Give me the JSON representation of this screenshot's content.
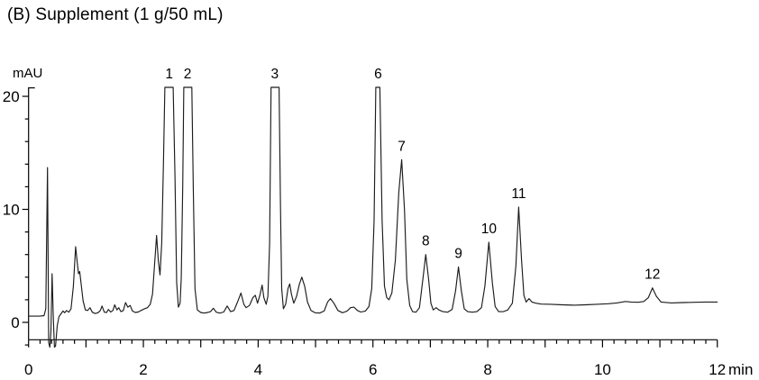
{
  "chart_data": {
    "type": "line",
    "title": "(B) Supplement (1 g/50 mL)",
    "xlabel": "min",
    "ylabel": "mAU",
    "xlim": [
      0,
      12
    ],
    "ylim": [
      -2.4,
      21.2
    ],
    "x_major_ticks": [
      0,
      2,
      4,
      6,
      8,
      10,
      12
    ],
    "x_tick_step_minor": 0.2,
    "y_major_ticks": [
      0,
      10,
      20
    ],
    "y_tick_step_minor": 2,
    "grid": "off",
    "legend": "none",
    "detector_clip_level_mAU": 20.8,
    "trace_color": "#1c1c1c",
    "axis_color": "#000000",
    "peaks": [
      {
        "label": "1",
        "t_min": 2.45,
        "height_mAU": 20.8,
        "clipped": true
      },
      {
        "label": "2",
        "t_min": 2.77,
        "height_mAU": 20.8,
        "clipped": true
      },
      {
        "label": "3",
        "t_min": 4.29,
        "height_mAU": 20.8,
        "clipped": true
      },
      {
        "label": "6",
        "t_min": 6.09,
        "height_mAU": 20.8,
        "clipped": true
      },
      {
        "label": "7",
        "t_min": 6.5,
        "height_mAU": 14.4,
        "clipped": false
      },
      {
        "label": "8",
        "t_min": 6.92,
        "height_mAU": 6.0,
        "clipped": false
      },
      {
        "label": "9",
        "t_min": 7.49,
        "height_mAU": 4.9,
        "clipped": false
      },
      {
        "label": "10",
        "t_min": 8.02,
        "height_mAU": 7.1,
        "clipped": false
      },
      {
        "label": "11",
        "t_min": 8.54,
        "height_mAU": 10.2,
        "clipped": false
      },
      {
        "label": "12",
        "t_min": 10.87,
        "height_mAU": 3.05,
        "clipped": false
      }
    ],
    "trace": [
      [
        0,
        0.55
      ],
      [
        0.2,
        0.55
      ],
      [
        0.27,
        0.6
      ],
      [
        0.3,
        1.2
      ],
      [
        0.33,
        13.7
      ],
      [
        0.35,
        -1.8
      ],
      [
        0.37,
        -2.2
      ],
      [
        0.39,
        -0.8
      ],
      [
        0.41,
        4.3
      ],
      [
        0.43,
        0.5
      ],
      [
        0.45,
        -2.2
      ],
      [
        0.47,
        -2.1
      ],
      [
        0.5,
        -0.3
      ],
      [
        0.53,
        0.5
      ],
      [
        0.57,
        0.8
      ],
      [
        0.6,
        1.0
      ],
      [
        0.63,
        0.85
      ],
      [
        0.66,
        1.05
      ],
      [
        0.7,
        0.9
      ],
      [
        0.74,
        1.2
      ],
      [
        0.78,
        3.2
      ],
      [
        0.82,
        6.7
      ],
      [
        0.85,
        5.2
      ],
      [
        0.87,
        4.3
      ],
      [
        0.89,
        4.5
      ],
      [
        0.92,
        3.2
      ],
      [
        0.95,
        1.9
      ],
      [
        0.99,
        1.1
      ],
      [
        1.03,
        1.05
      ],
      [
        1.07,
        1.3
      ],
      [
        1.11,
        0.9
      ],
      [
        1.16,
        0.78
      ],
      [
        1.21,
        0.85
      ],
      [
        1.25,
        1.05
      ],
      [
        1.28,
        1.45
      ],
      [
        1.32,
        0.9
      ],
      [
        1.36,
        0.88
      ],
      [
        1.39,
        1.15
      ],
      [
        1.43,
        0.92
      ],
      [
        1.47,
        1.05
      ],
      [
        1.5,
        1.55
      ],
      [
        1.54,
        1.1
      ],
      [
        1.57,
        1.3
      ],
      [
        1.61,
        0.95
      ],
      [
        1.65,
        1.05
      ],
      [
        1.69,
        1.75
      ],
      [
        1.73,
        1.35
      ],
      [
        1.77,
        1.5
      ],
      [
        1.81,
        1.0
      ],
      [
        1.86,
        0.88
      ],
      [
        1.91,
        0.92
      ],
      [
        1.96,
        1.05
      ],
      [
        2.02,
        1.2
      ],
      [
        2.07,
        1.3
      ],
      [
        2.12,
        1.6
      ],
      [
        2.16,
        2.5
      ],
      [
        2.2,
        5.5
      ],
      [
        2.23,
        7.7
      ],
      [
        2.26,
        5.5
      ],
      [
        2.29,
        4.2
      ],
      [
        2.32,
        7.0
      ],
      [
        2.35,
        14.0
      ],
      [
        2.375,
        20.8
      ],
      [
        2.52,
        20.8
      ],
      [
        2.55,
        13.0
      ],
      [
        2.58,
        3.5
      ],
      [
        2.61,
        1.35
      ],
      [
        2.64,
        1.7
      ],
      [
        2.66,
        4.0
      ],
      [
        2.685,
        12.0
      ],
      [
        2.705,
        20.8
      ],
      [
        2.845,
        20.8
      ],
      [
        2.87,
        12.0
      ],
      [
        2.9,
        3.0
      ],
      [
        2.94,
        1.1
      ],
      [
        3.0,
        0.88
      ],
      [
        3.06,
        0.82
      ],
      [
        3.12,
        0.88
      ],
      [
        3.17,
        0.95
      ],
      [
        3.22,
        1.25
      ],
      [
        3.27,
        0.9
      ],
      [
        3.33,
        0.82
      ],
      [
        3.4,
        0.92
      ],
      [
        3.46,
        1.45
      ],
      [
        3.52,
        0.95
      ],
      [
        3.58,
        1.05
      ],
      [
        3.64,
        1.8
      ],
      [
        3.7,
        2.6
      ],
      [
        3.75,
        1.6
      ],
      [
        3.79,
        1.3
      ],
      [
        3.85,
        1.5
      ],
      [
        3.91,
        2.2
      ],
      [
        3.95,
        2.4
      ],
      [
        3.99,
        1.7
      ],
      [
        4.03,
        2.4
      ],
      [
        4.07,
        3.3
      ],
      [
        4.1,
        2.2
      ],
      [
        4.14,
        1.6
      ],
      [
        4.17,
        2.3
      ],
      [
        4.2,
        7.0
      ],
      [
        4.225,
        20.8
      ],
      [
        4.365,
        20.8
      ],
      [
        4.39,
        10.0
      ],
      [
        4.41,
        3.0
      ],
      [
        4.44,
        1.2
      ],
      [
        4.48,
        1.6
      ],
      [
        4.52,
        3.0
      ],
      [
        4.55,
        3.4
      ],
      [
        4.58,
        2.5
      ],
      [
        4.62,
        1.7
      ],
      [
        4.67,
        2.3
      ],
      [
        4.72,
        3.4
      ],
      [
        4.76,
        4.0
      ],
      [
        4.81,
        3.2
      ],
      [
        4.86,
        1.8
      ],
      [
        4.92,
        1.05
      ],
      [
        4.99,
        0.85
      ],
      [
        5.07,
        0.82
      ],
      [
        5.15,
        1.0
      ],
      [
        5.21,
        1.8
      ],
      [
        5.26,
        2.1
      ],
      [
        5.32,
        1.7
      ],
      [
        5.39,
        1.05
      ],
      [
        5.47,
        0.85
      ],
      [
        5.55,
        1.0
      ],
      [
        5.61,
        1.3
      ],
      [
        5.67,
        1.35
      ],
      [
        5.73,
        1.05
      ],
      [
        5.79,
        0.92
      ],
      [
        5.87,
        1.0
      ],
      [
        5.93,
        1.4
      ],
      [
        5.98,
        3.0
      ],
      [
        6.02,
        9.0
      ],
      [
        6.05,
        20.8
      ],
      [
        6.12,
        20.8
      ],
      [
        6.16,
        9.0
      ],
      [
        6.2,
        3.2
      ],
      [
        6.24,
        2.2
      ],
      [
        6.28,
        2.0
      ],
      [
        6.33,
        2.6
      ],
      [
        6.39,
        5.5
      ],
      [
        6.45,
        11.5
      ],
      [
        6.5,
        14.4
      ],
      [
        6.55,
        10.0
      ],
      [
        6.59,
        3.8
      ],
      [
        6.64,
        1.5
      ],
      [
        6.69,
        0.95
      ],
      [
        6.75,
        0.9
      ],
      [
        6.81,
        1.3
      ],
      [
        6.87,
        3.8
      ],
      [
        6.92,
        6.0
      ],
      [
        6.97,
        3.8
      ],
      [
        7.01,
        1.7
      ],
      [
        7.05,
        1.1
      ],
      [
        7.1,
        1.3
      ],
      [
        7.15,
        1.1
      ],
      [
        7.22,
        0.95
      ],
      [
        7.3,
        0.9
      ],
      [
        7.38,
        1.15
      ],
      [
        7.44,
        2.8
      ],
      [
        7.49,
        4.9
      ],
      [
        7.54,
        2.8
      ],
      [
        7.59,
        1.2
      ],
      [
        7.65,
        0.95
      ],
      [
        7.73,
        0.9
      ],
      [
        7.81,
        0.95
      ],
      [
        7.89,
        1.3
      ],
      [
        7.95,
        3.2
      ],
      [
        8.02,
        7.1
      ],
      [
        8.08,
        3.5
      ],
      [
        8.13,
        1.4
      ],
      [
        8.19,
        0.95
      ],
      [
        8.27,
        0.95
      ],
      [
        8.35,
        1.1
      ],
      [
        8.43,
        1.7
      ],
      [
        8.49,
        5.0
      ],
      [
        8.54,
        10.2
      ],
      [
        8.59,
        5.5
      ],
      [
        8.63,
        2.4
      ],
      [
        8.67,
        1.8
      ],
      [
        8.72,
        2.1
      ],
      [
        8.77,
        1.8
      ],
      [
        8.84,
        1.7
      ],
      [
        8.93,
        1.62
      ],
      [
        9.1,
        1.6
      ],
      [
        9.3,
        1.55
      ],
      [
        9.5,
        1.52
      ],
      [
        9.7,
        1.55
      ],
      [
        9.9,
        1.6
      ],
      [
        10.1,
        1.65
      ],
      [
        10.25,
        1.72
      ],
      [
        10.4,
        1.85
      ],
      [
        10.5,
        1.8
      ],
      [
        10.62,
        1.78
      ],
      [
        10.72,
        1.85
      ],
      [
        10.8,
        2.2
      ],
      [
        10.87,
        3.05
      ],
      [
        10.94,
        2.3
      ],
      [
        11.02,
        1.8
      ],
      [
        11.2,
        1.72
      ],
      [
        11.4,
        1.75
      ],
      [
        11.6,
        1.78
      ],
      [
        11.8,
        1.8
      ],
      [
        12.0,
        1.8
      ]
    ]
  }
}
